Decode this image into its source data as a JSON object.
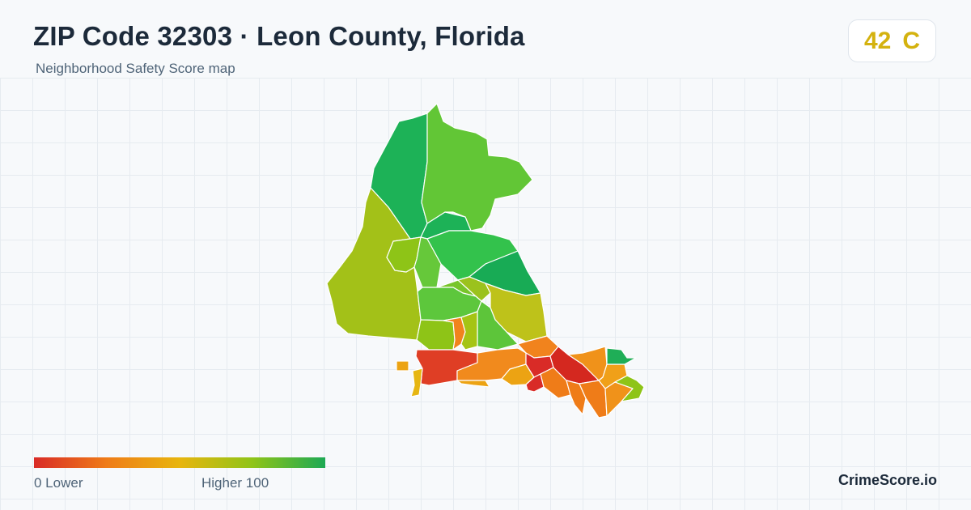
{
  "header": {
    "title": "ZIP Code 32303 · Leon County, Florida",
    "subtitle": "Neighborhood Safety Score map"
  },
  "score": {
    "value": "42",
    "grade": "C",
    "color": "#d4b20f"
  },
  "legend": {
    "low_text": "0  Lower",
    "high_text": "Higher  100",
    "min": 0,
    "max": 100,
    "colors": [
      "#d92b27",
      "#ef7c18",
      "#e8b50e",
      "#8fc418",
      "#1da954"
    ]
  },
  "brand": "CrimeScore.io"
}
